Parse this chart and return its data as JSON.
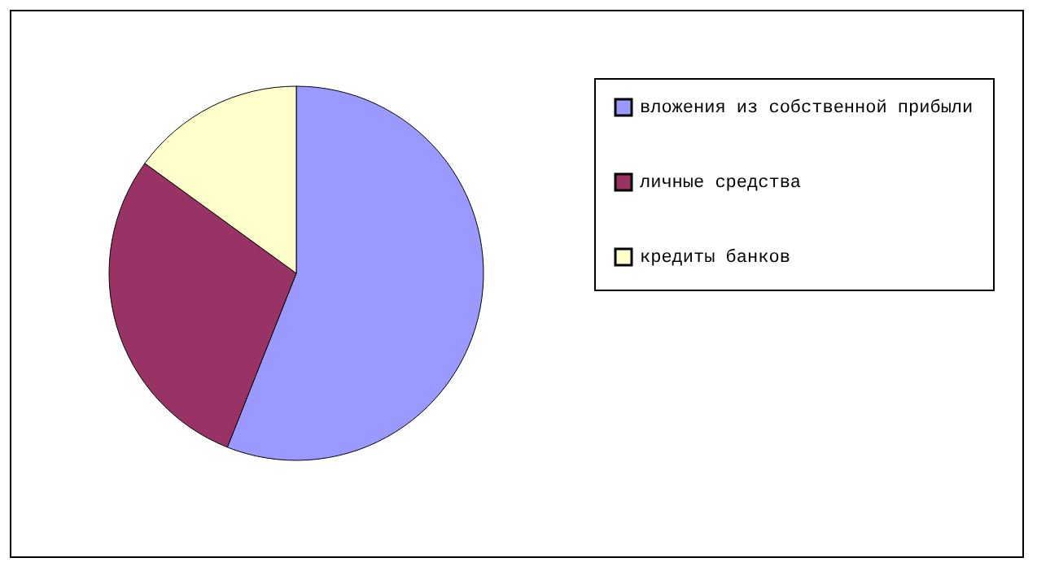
{
  "chart_data": {
    "type": "pie",
    "categories": [
      "вложения из собственной прибыли",
      "личные средства",
      "кредиты банков"
    ],
    "values": [
      56,
      29,
      15
    ],
    "colors": [
      "#9999ff",
      "#993366",
      "#ffffcc"
    ],
    "legend": "right"
  }
}
